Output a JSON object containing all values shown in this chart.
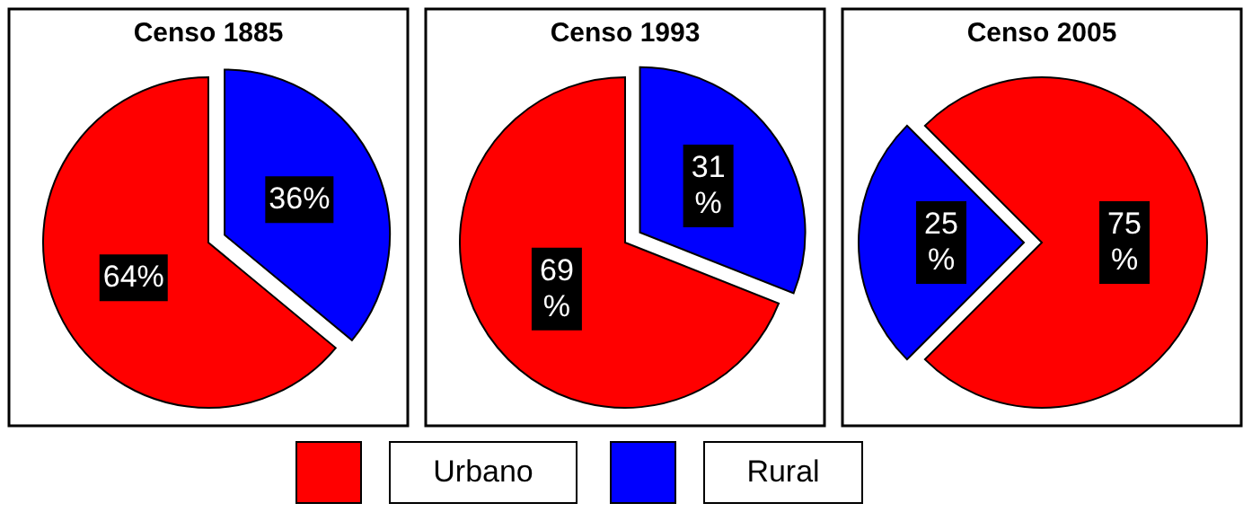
{
  "chart_data": [
    {
      "type": "pie",
      "title": "Censo 1885",
      "categories": [
        "Urbano",
        "Rural"
      ],
      "values": [
        64,
        36
      ],
      "colors": [
        "#ff0000",
        "#0000ff"
      ],
      "value_labels": [
        "64%",
        "36%"
      ],
      "legend": "bottom"
    },
    {
      "type": "pie",
      "title": "Censo 1993",
      "categories": [
        null,
        null
      ],
      "values": [
        69,
        31
      ],
      "colors": [
        "#ff0000",
        "#0000ff"
      ],
      "value_labels": [
        "69\n%",
        "31\n%"
      ]
    },
    {
      "type": "pie",
      "title": "Censo 2005",
      "categories": [
        null,
        null
      ],
      "values": [
        75,
        25
      ],
      "colors": [
        "#ff0000",
        "#0000ff"
      ],
      "value_labels": [
        "75\n%",
        "25\n%"
      ]
    }
  ]
}
